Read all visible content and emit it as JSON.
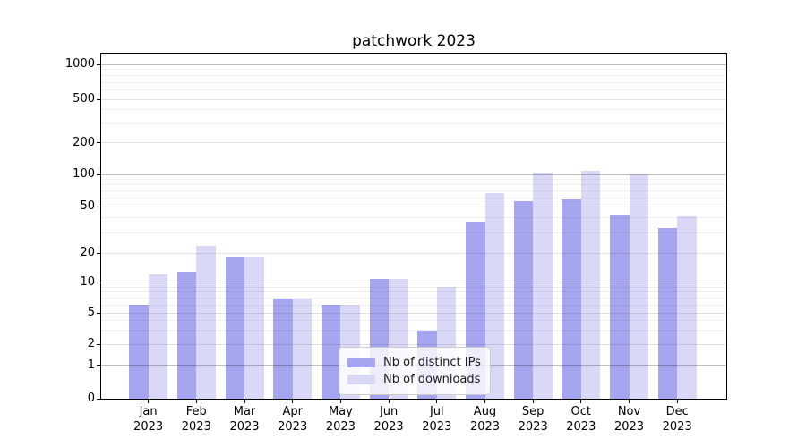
{
  "title": "patchwork 2023",
  "chart_data": {
    "type": "bar",
    "title": "patchwork 2023",
    "categories": [
      "Jan",
      "Feb",
      "Mar",
      "Apr",
      "May",
      "Jun",
      "Jul",
      "Aug",
      "Sep",
      "Oct",
      "Nov",
      "Dec"
    ],
    "year": "2023",
    "series": [
      {
        "name": "Nb of distinct IPs",
        "color": "#a5a5f0",
        "values": [
          6,
          13,
          18,
          7,
          6,
          11,
          3,
          37,
          56,
          58,
          43,
          33
        ]
      },
      {
        "name": "Nb of downloads",
        "color": "#d9d9f7",
        "values": [
          12,
          23,
          18,
          7,
          6,
          11,
          9,
          67,
          105,
          108,
          100,
          41
        ]
      }
    ],
    "xlabel": "",
    "ylabel": "",
    "yscale": "symlog",
    "y_ticks": [
      0,
      1,
      2,
      5,
      10,
      20,
      50,
      100,
      200,
      500,
      1000
    ],
    "y_minor_ticks": [
      3,
      4,
      6,
      7,
      8,
      9,
      30,
      40,
      60,
      70,
      80,
      90,
      300,
      400,
      600,
      700,
      800,
      900
    ],
    "ylim": [
      0,
      1250
    ],
    "grid": true,
    "legend_position": "lower center"
  }
}
